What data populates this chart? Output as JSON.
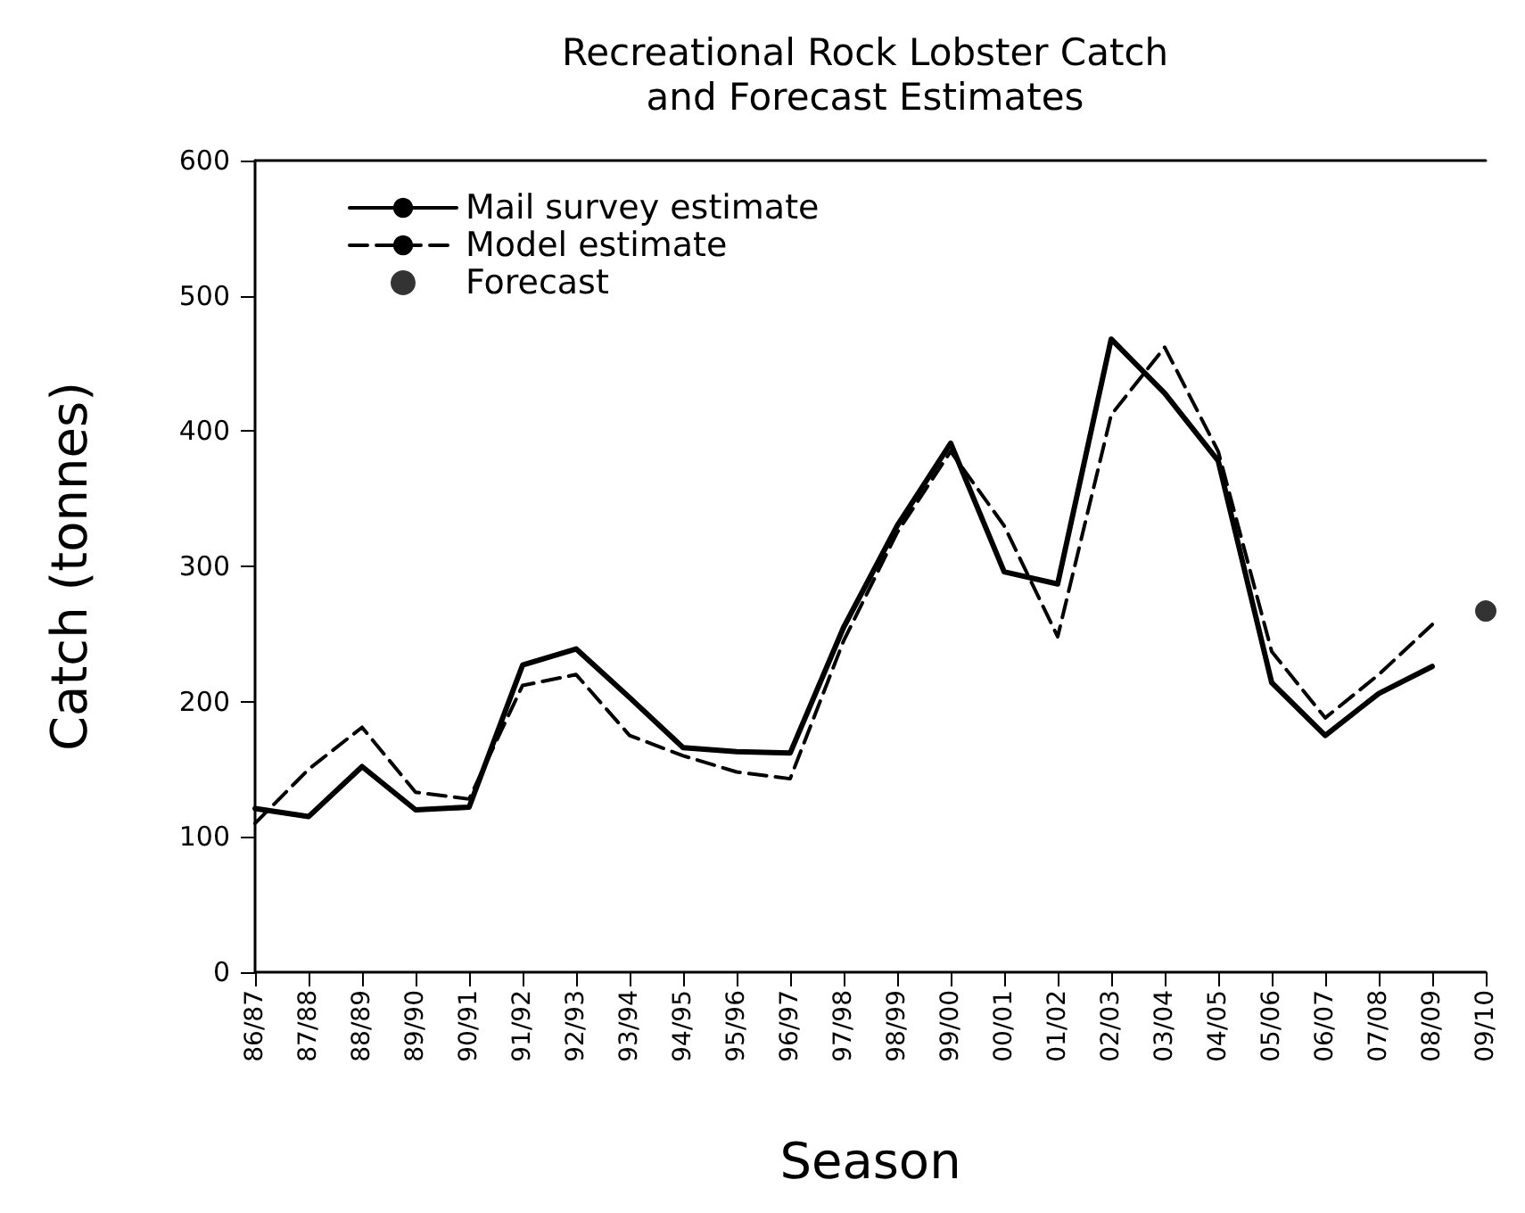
{
  "chart_data": {
    "type": "line",
    "title": "Recreational Rock Lobster Catch\nand Forecast Estimates",
    "xlabel": "Season",
    "ylabel": "Catch (tonnes)",
    "categories": [
      "86/87",
      "87/88",
      "88/89",
      "89/90",
      "90/91",
      "91/92",
      "92/93",
      "93/94",
      "94/95",
      "95/96",
      "96/97",
      "97/98",
      "98/99",
      "99/00",
      "00/01",
      "01/02",
      "02/03",
      "03/04",
      "04/05",
      "05/06",
      "06/07",
      "07/08",
      "08/09",
      "09/10"
    ],
    "series": [
      {
        "name": "Mail survey estimate",
        "color": "#000000",
        "line_style": "solid",
        "marker": "none",
        "values": [
          121,
          115,
          152,
          120,
          122,
          227,
          239,
          203,
          166,
          163,
          162,
          255,
          330,
          391,
          296,
          287,
          468,
          428,
          378,
          214,
          175,
          206,
          226,
          null
        ]
      },
      {
        "name": "Model estimate",
        "color": "#000000",
        "line_style": "dashed",
        "marker": "none",
        "values": [
          110,
          150,
          181,
          133,
          128,
          212,
          220,
          175,
          160,
          148,
          143,
          245,
          325,
          385,
          330,
          248,
          412,
          462,
          385,
          237,
          188,
          220,
          257,
          null
        ]
      },
      {
        "name": "Forecast",
        "type": "scatter",
        "color": "#000000",
        "marker": "circle",
        "values": [
          null,
          null,
          null,
          null,
          null,
          null,
          null,
          null,
          null,
          null,
          null,
          null,
          null,
          null,
          null,
          null,
          null,
          null,
          null,
          null,
          null,
          null,
          null,
          267
        ]
      }
    ],
    "ylim": [
      0,
      600
    ],
    "yticks": [
      0,
      100,
      200,
      300,
      400,
      500,
      600
    ],
    "grid": false,
    "legend": "top left"
  }
}
